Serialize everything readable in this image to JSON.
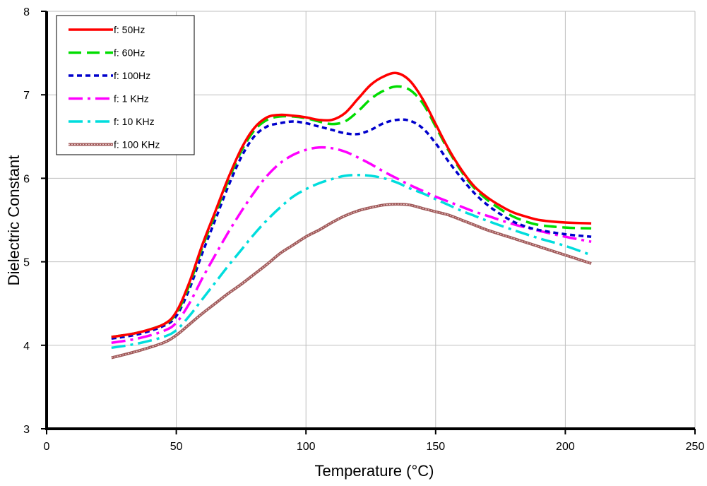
{
  "chart_data": {
    "type": "line",
    "title": "",
    "xlabel": "Temperature (°C)",
    "ylabel": "Dielectric Constant",
    "xlim": [
      0,
      250
    ],
    "ylim": [
      3,
      8
    ],
    "x_ticks": [
      0,
      50,
      100,
      150,
      200,
      250
    ],
    "y_ticks": [
      3,
      4,
      5,
      6,
      7,
      8
    ],
    "grid": "both",
    "legend_position": "top-left",
    "series": [
      {
        "name": "f: 50Hz",
        "color": "#ff0000",
        "style": "solid",
        "points": [
          [
            25,
            4.1
          ],
          [
            35,
            4.15
          ],
          [
            45,
            4.25
          ],
          [
            50,
            4.4
          ],
          [
            55,
            4.75
          ],
          [
            60,
            5.2
          ],
          [
            65,
            5.6
          ],
          [
            70,
            6.0
          ],
          [
            75,
            6.35
          ],
          [
            80,
            6.6
          ],
          [
            85,
            6.73
          ],
          [
            90,
            6.76
          ],
          [
            95,
            6.75
          ],
          [
            100,
            6.73
          ],
          [
            105,
            6.7
          ],
          [
            110,
            6.7
          ],
          [
            115,
            6.78
          ],
          [
            120,
            6.95
          ],
          [
            125,
            7.12
          ],
          [
            130,
            7.22
          ],
          [
            135,
            7.26
          ],
          [
            140,
            7.17
          ],
          [
            145,
            6.95
          ],
          [
            150,
            6.65
          ],
          [
            155,
            6.35
          ],
          [
            160,
            6.1
          ],
          [
            165,
            5.9
          ],
          [
            170,
            5.77
          ],
          [
            175,
            5.67
          ],
          [
            180,
            5.59
          ],
          [
            185,
            5.54
          ],
          [
            190,
            5.5
          ],
          [
            200,
            5.47
          ],
          [
            210,
            5.46
          ]
        ]
      },
      {
        "name": "f: 60Hz",
        "color": "#00dd00",
        "style": "dashed",
        "points": [
          [
            25,
            4.1
          ],
          [
            35,
            4.15
          ],
          [
            45,
            4.25
          ],
          [
            50,
            4.38
          ],
          [
            55,
            4.72
          ],
          [
            60,
            5.17
          ],
          [
            65,
            5.57
          ],
          [
            70,
            5.97
          ],
          [
            75,
            6.32
          ],
          [
            80,
            6.57
          ],
          [
            85,
            6.7
          ],
          [
            90,
            6.74
          ],
          [
            95,
            6.74
          ],
          [
            100,
            6.72
          ],
          [
            105,
            6.68
          ],
          [
            110,
            6.65
          ],
          [
            115,
            6.68
          ],
          [
            120,
            6.8
          ],
          [
            125,
            6.95
          ],
          [
            130,
            7.05
          ],
          [
            135,
            7.1
          ],
          [
            140,
            7.06
          ],
          [
            145,
            6.9
          ],
          [
            150,
            6.62
          ],
          [
            155,
            6.33
          ],
          [
            160,
            6.08
          ],
          [
            165,
            5.88
          ],
          [
            170,
            5.74
          ],
          [
            175,
            5.63
          ],
          [
            180,
            5.54
          ],
          [
            185,
            5.48
          ],
          [
            190,
            5.44
          ],
          [
            200,
            5.41
          ],
          [
            210,
            5.4
          ]
        ]
      },
      {
        "name": "f: 100Hz",
        "color": "#0000cc",
        "style": "dotted",
        "points": [
          [
            25,
            4.08
          ],
          [
            35,
            4.13
          ],
          [
            45,
            4.23
          ],
          [
            50,
            4.35
          ],
          [
            55,
            4.67
          ],
          [
            60,
            5.1
          ],
          [
            65,
            5.5
          ],
          [
            70,
            5.9
          ],
          [
            75,
            6.25
          ],
          [
            80,
            6.5
          ],
          [
            85,
            6.62
          ],
          [
            90,
            6.66
          ],
          [
            95,
            6.68
          ],
          [
            100,
            6.66
          ],
          [
            105,
            6.62
          ],
          [
            110,
            6.58
          ],
          [
            115,
            6.54
          ],
          [
            120,
            6.53
          ],
          [
            125,
            6.58
          ],
          [
            130,
            6.66
          ],
          [
            135,
            6.7
          ],
          [
            140,
            6.69
          ],
          [
            145,
            6.6
          ],
          [
            150,
            6.42
          ],
          [
            155,
            6.2
          ],
          [
            160,
            6.0
          ],
          [
            165,
            5.82
          ],
          [
            170,
            5.68
          ],
          [
            175,
            5.57
          ],
          [
            180,
            5.48
          ],
          [
            185,
            5.42
          ],
          [
            190,
            5.38
          ],
          [
            200,
            5.33
          ],
          [
            210,
            5.3
          ]
        ]
      },
      {
        "name": "f: 1 KHz",
        "color": "#ff00ff",
        "style": "dashdot",
        "points": [
          [
            25,
            4.03
          ],
          [
            35,
            4.08
          ],
          [
            45,
            4.17
          ],
          [
            50,
            4.27
          ],
          [
            55,
            4.5
          ],
          [
            60,
            4.8
          ],
          [
            65,
            5.08
          ],
          [
            70,
            5.35
          ],
          [
            75,
            5.6
          ],
          [
            80,
            5.83
          ],
          [
            85,
            6.03
          ],
          [
            90,
            6.18
          ],
          [
            95,
            6.28
          ],
          [
            100,
            6.34
          ],
          [
            105,
            6.37
          ],
          [
            110,
            6.36
          ],
          [
            115,
            6.32
          ],
          [
            120,
            6.25
          ],
          [
            125,
            6.17
          ],
          [
            130,
            6.08
          ],
          [
            135,
            6.0
          ],
          [
            140,
            5.92
          ],
          [
            145,
            5.85
          ],
          [
            150,
            5.78
          ],
          [
            155,
            5.72
          ],
          [
            160,
            5.66
          ],
          [
            165,
            5.6
          ],
          [
            170,
            5.55
          ],
          [
            180,
            5.45
          ],
          [
            190,
            5.37
          ],
          [
            200,
            5.3
          ],
          [
            210,
            5.24
          ]
        ]
      },
      {
        "name": "f: 10 KHz",
        "color": "#00dddd",
        "style": "dashdot",
        "points": [
          [
            25,
            3.97
          ],
          [
            35,
            4.02
          ],
          [
            45,
            4.1
          ],
          [
            50,
            4.18
          ],
          [
            55,
            4.35
          ],
          [
            60,
            4.55
          ],
          [
            65,
            4.75
          ],
          [
            70,
            4.95
          ],
          [
            75,
            5.14
          ],
          [
            80,
            5.33
          ],
          [
            85,
            5.5
          ],
          [
            90,
            5.65
          ],
          [
            95,
            5.78
          ],
          [
            100,
            5.87
          ],
          [
            105,
            5.94
          ],
          [
            110,
            5.99
          ],
          [
            115,
            6.03
          ],
          [
            120,
            6.04
          ],
          [
            125,
            6.03
          ],
          [
            130,
            6.0
          ],
          [
            135,
            5.95
          ],
          [
            140,
            5.88
          ],
          [
            145,
            5.82
          ],
          [
            150,
            5.75
          ],
          [
            155,
            5.68
          ],
          [
            160,
            5.61
          ],
          [
            165,
            5.55
          ],
          [
            170,
            5.49
          ],
          [
            180,
            5.38
          ],
          [
            190,
            5.28
          ],
          [
            200,
            5.19
          ],
          [
            210,
            5.08
          ]
        ]
      },
      {
        "name": "f: 100 KHz",
        "color": "#a05a5a",
        "style": "textured",
        "points": [
          [
            25,
            3.85
          ],
          [
            35,
            3.93
          ],
          [
            45,
            4.03
          ],
          [
            50,
            4.12
          ],
          [
            55,
            4.25
          ],
          [
            60,
            4.38
          ],
          [
            65,
            4.5
          ],
          [
            70,
            4.62
          ],
          [
            75,
            4.73
          ],
          [
            80,
            4.85
          ],
          [
            85,
            4.97
          ],
          [
            90,
            5.1
          ],
          [
            95,
            5.2
          ],
          [
            100,
            5.3
          ],
          [
            105,
            5.38
          ],
          [
            110,
            5.47
          ],
          [
            115,
            5.55
          ],
          [
            120,
            5.61
          ],
          [
            125,
            5.65
          ],
          [
            130,
            5.68
          ],
          [
            135,
            5.69
          ],
          [
            140,
            5.68
          ],
          [
            145,
            5.64
          ],
          [
            150,
            5.6
          ],
          [
            155,
            5.56
          ],
          [
            160,
            5.5
          ],
          [
            165,
            5.44
          ],
          [
            170,
            5.38
          ],
          [
            180,
            5.28
          ],
          [
            190,
            5.18
          ],
          [
            200,
            5.08
          ],
          [
            210,
            4.98
          ]
        ]
      }
    ]
  }
}
